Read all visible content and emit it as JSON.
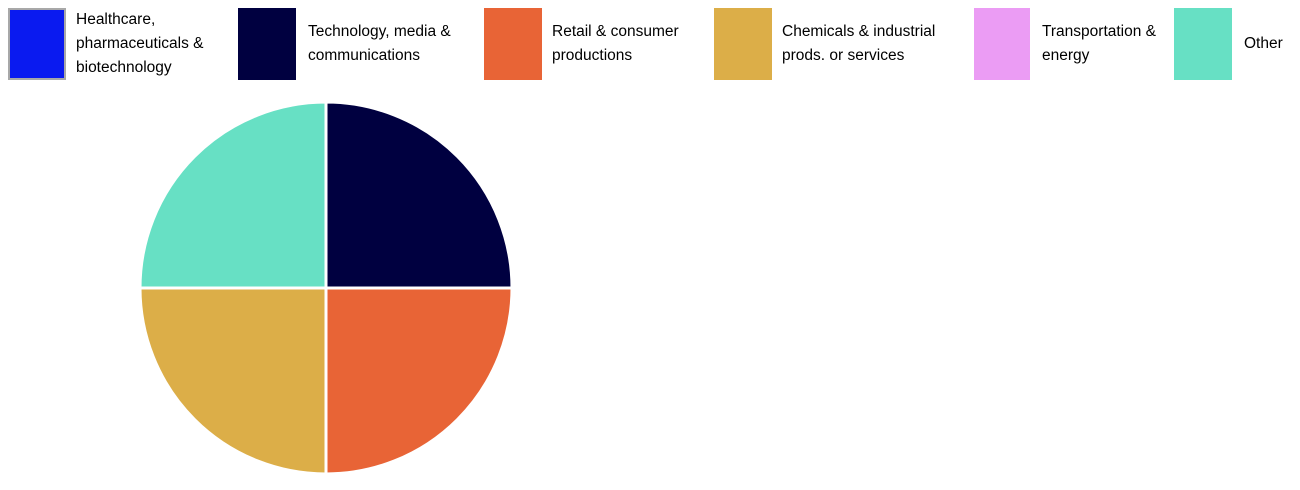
{
  "chart_data": {
    "type": "pie",
    "legend_position": "top",
    "slices": [
      {
        "label": "Healthcare, pharmaceuticals & biotechnology",
        "value": 0,
        "color": "#0a1af0"
      },
      {
        "label": "Technology, media & communications",
        "value": 25,
        "color": "#000040"
      },
      {
        "label": "Retail & consumer productions",
        "value": 25,
        "color": "#e86436"
      },
      {
        "label": "Chemicals & industrial prods. or services",
        "value": 25,
        "color": "#dcae48"
      },
      {
        "label": "Transportation & energy",
        "value": 0,
        "color": "#eb9cf4"
      },
      {
        "label": "Other",
        "value": 25,
        "color": "#67e0c4"
      }
    ]
  },
  "legend": {
    "items": [
      {
        "lines": [
          "Healthcare,",
          "pharmaceuticals &",
          "biotechnology"
        ],
        "color": "#0a1af0"
      },
      {
        "lines": [
          "Technology, media &",
          "communications"
        ],
        "color": "#000040"
      },
      {
        "lines": [
          "Retail & consumer",
          "productions"
        ],
        "color": "#e86436"
      },
      {
        "lines": [
          "Chemicals & industrial",
          "prods. or services"
        ],
        "color": "#dcae48"
      },
      {
        "lines": [
          "Transportation &",
          "energy"
        ],
        "color": "#eb9cf4"
      },
      {
        "lines": [
          "Other"
        ],
        "color": "#67e0c4"
      }
    ]
  }
}
